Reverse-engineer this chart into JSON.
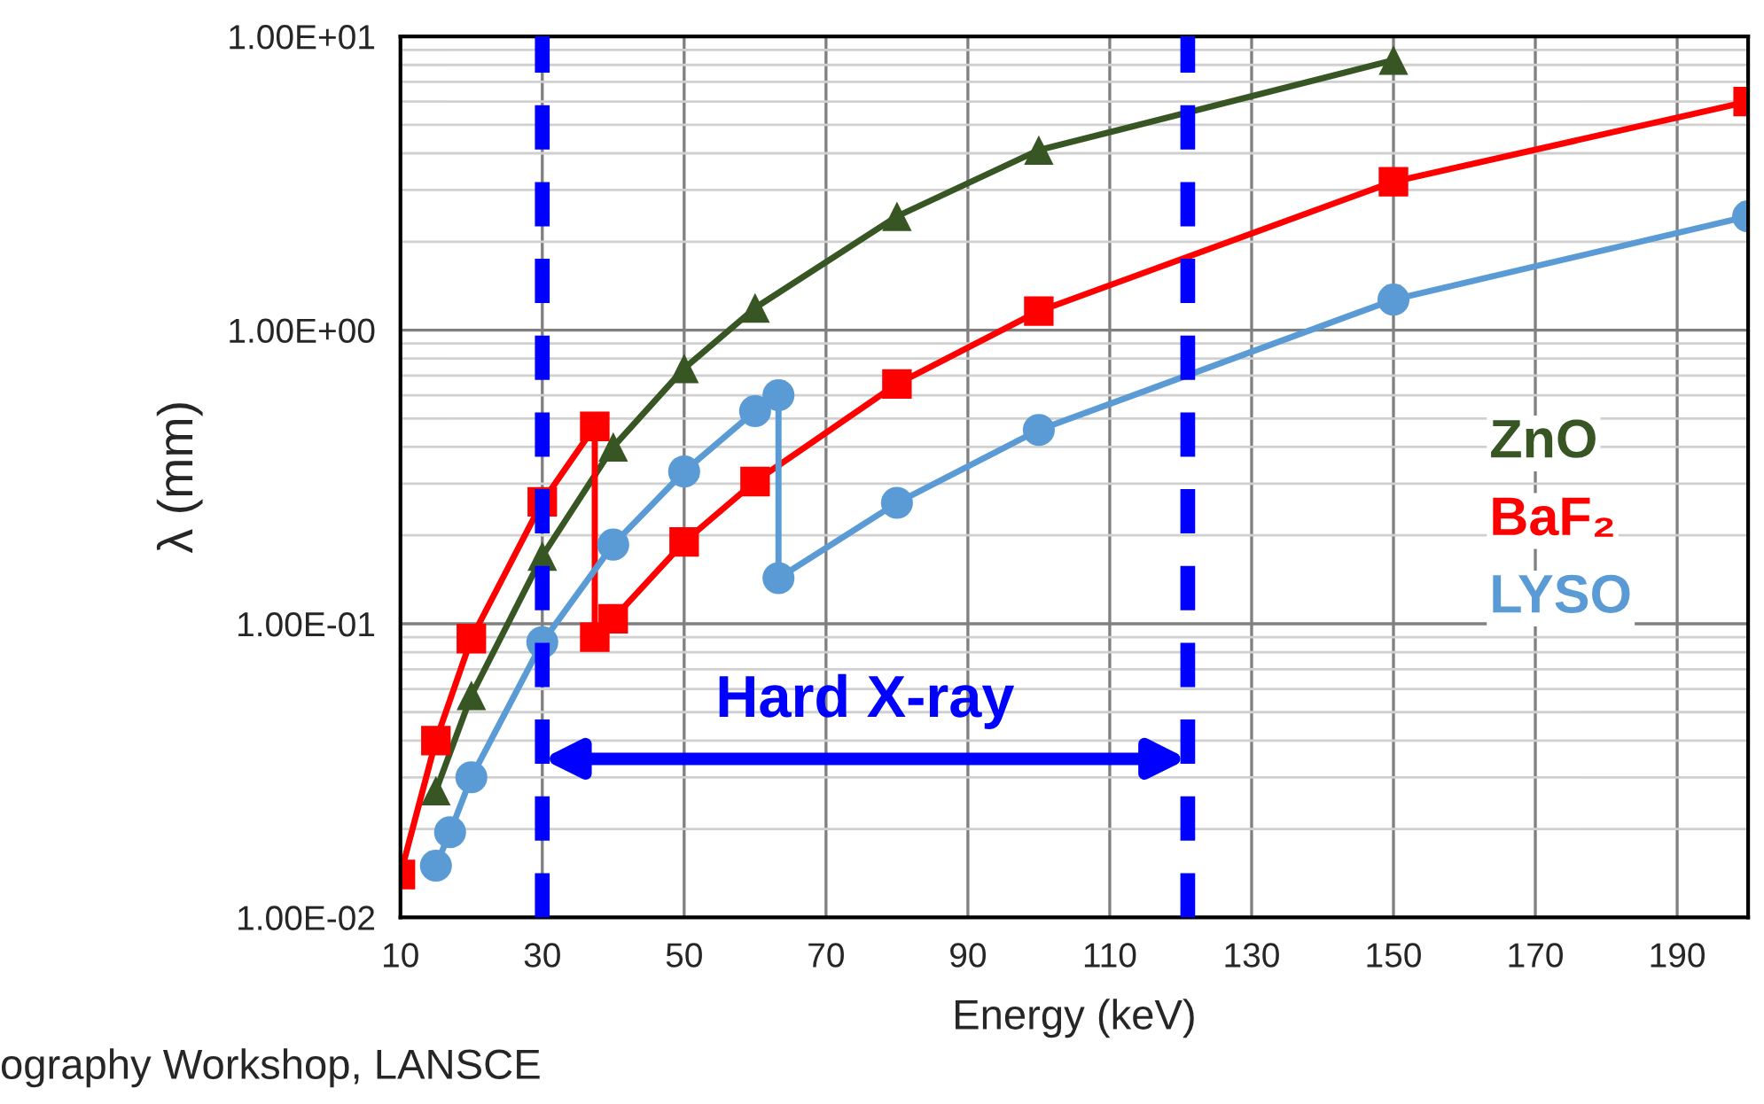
{
  "chart_data": {
    "type": "line",
    "xlabel": "Energy (keV)",
    "ylabel": "λ (mm)",
    "log": "y",
    "xlim": [
      10,
      200
    ],
    "xticks": [
      10,
      30,
      50,
      70,
      90,
      110,
      130,
      150,
      170,
      190
    ],
    "ylim": [
      0.01,
      10
    ],
    "yticks": [
      {
        "value": 0.01,
        "label": "1.00E-02"
      },
      {
        "value": 0.1,
        "label": "1.00E-01"
      },
      {
        "value": 1,
        "label": "1.00E+00"
      },
      {
        "value": 10,
        "label": "1.00E+01"
      }
    ],
    "grid": true,
    "legend": "right",
    "line_style": "solid",
    "series": [
      {
        "name": "ZnO",
        "color": "#375623",
        "marker": "triangle",
        "x": [
          15,
          20,
          30,
          40,
          50,
          60,
          80,
          100,
          150
        ],
        "values": [
          0.027,
          0.057,
          0.17,
          0.4,
          0.74,
          1.19,
          2.44,
          4.1,
          8.3
        ]
      },
      {
        "name": "BaF₂",
        "color": "#ff0000",
        "marker": "square",
        "x": [
          10,
          15,
          20,
          30,
          37.4,
          37.4,
          40,
          50,
          60,
          80,
          100,
          150,
          200
        ],
        "values": [
          0.014,
          0.04,
          0.089,
          0.26,
          0.47,
          0.09,
          0.104,
          0.19,
          0.305,
          0.655,
          1.16,
          3.2,
          6.0
        ]
      },
      {
        "name": "LYSO",
        "color": "#5b9bd5",
        "marker": "circle",
        "x": [
          15,
          17,
          20,
          30,
          40,
          50,
          60,
          63.3,
          63.3,
          80,
          100,
          150,
          200
        ],
        "values": [
          0.015,
          0.0195,
          0.03,
          0.0865,
          0.186,
          0.33,
          0.53,
          0.6,
          0.143,
          0.258,
          0.457,
          1.27,
          2.44
        ]
      }
    ],
    "ref_lines": [
      {
        "axis": "x",
        "value": 30,
        "color": "#0000ff",
        "line_style": "dashed"
      },
      {
        "axis": "x",
        "value": 121,
        "color": "#0000ff",
        "line_style": "dashed"
      }
    ],
    "annotations": [
      "Hard X-ray",
      "ography Workshop, LANSCE"
    ]
  }
}
